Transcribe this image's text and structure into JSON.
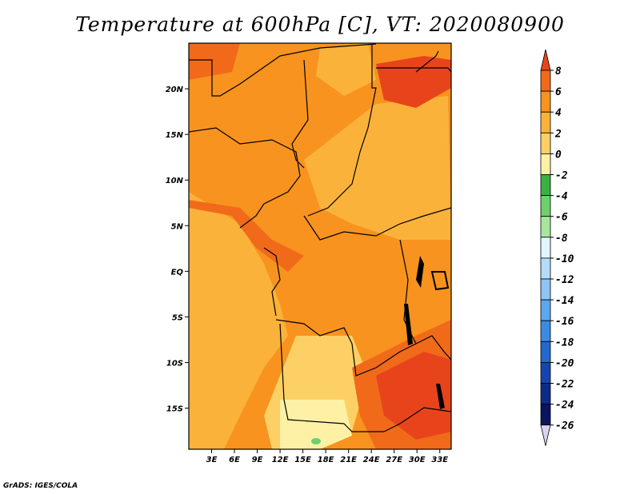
{
  "title": "Temperature at 600hPa [C], VT: 2020080900",
  "credit": "GrADS: IGES/COLA",
  "map": {
    "lon_range": [
      0,
      34.5
    ],
    "lat_range": [
      -19.5,
      25
    ],
    "x_ticks": [
      "3E",
      "6E",
      "9E",
      "12E",
      "15E",
      "18E",
      "21E",
      "24E",
      "27E",
      "30E",
      "33E"
    ],
    "y_ticks": [
      "20N",
      "15N",
      "10N",
      "5N",
      "EQ",
      "5S",
      "10S",
      "15S"
    ]
  },
  "colorbar": {
    "labels": [
      "8",
      "6",
      "4",
      "2",
      "0",
      "-2",
      "-4",
      "-6",
      "-8",
      "-10",
      "-12",
      "-14",
      "-16",
      "-18",
      "-20",
      "-22",
      "-24",
      "-26"
    ],
    "colors": [
      "#e8441c",
      "#f06a1a",
      "#f7931e",
      "#fbb23b",
      "#fdd066",
      "#fef1a6",
      "#3cb043",
      "#6fd06a",
      "#a8e6a0",
      "#e1f5fe",
      "#b3dcfa",
      "#8dc5f5",
      "#5aa8ee",
      "#3a8ce3",
      "#2467cf",
      "#1745b0",
      "#0c2a8a",
      "#0a1560",
      "#d9d2f0"
    ]
  }
}
